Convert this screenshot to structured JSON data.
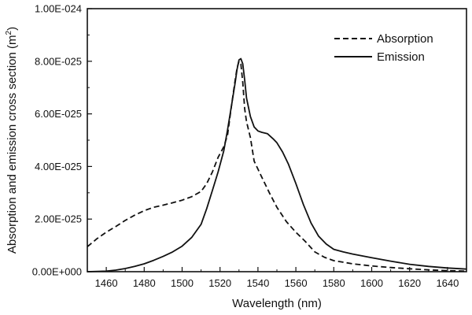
{
  "chart_data": {
    "type": "line",
    "title": "",
    "xlabel": "Wavelength (nm)",
    "ylabel_main": "Absorption and emission cross section (m",
    "ylabel_sup": "2",
    "ylabel_close": ")",
    "xlim": [
      1450,
      1650
    ],
    "ylim": [
      0,
      1e-24
    ],
    "x_ticks": [
      {
        "value": 1460,
        "label": "1460"
      },
      {
        "value": 1480,
        "label": "1480"
      },
      {
        "value": 1500,
        "label": "1500"
      },
      {
        "value": 1520,
        "label": "1520"
      },
      {
        "value": 1540,
        "label": "1540"
      },
      {
        "value": 1560,
        "label": "1560"
      },
      {
        "value": 1580,
        "label": "1580"
      },
      {
        "value": 1600,
        "label": "1600"
      },
      {
        "value": 1620,
        "label": "1620"
      },
      {
        "value": 1640,
        "label": "1640"
      }
    ],
    "y_ticks": [
      {
        "value": 0,
        "label": "0.00E+000"
      },
      {
        "value": 2e-25,
        "label": "2.00E-025"
      },
      {
        "value": 4e-25,
        "label": "4.00E-025"
      },
      {
        "value": 6e-25,
        "label": "6.00E-025"
      },
      {
        "value": 8e-25,
        "label": "8.00E-025"
      },
      {
        "value": 1e-24,
        "label": "1.00E-024"
      }
    ],
    "grid": false,
    "legend_position": "top-right",
    "series": [
      {
        "name": "Absorption",
        "style": "dashed",
        "color": "#111111",
        "x": [
          1450,
          1455,
          1460,
          1465,
          1470,
          1475,
          1480,
          1485,
          1490,
          1495,
          1500,
          1505,
          1510,
          1513,
          1516,
          1519,
          1522,
          1524,
          1526,
          1527,
          1528,
          1529,
          1530,
          1531,
          1532,
          1533,
          1534,
          1536,
          1538,
          1542,
          1546,
          1550,
          1555,
          1560,
          1565,
          1570,
          1575,
          1580,
          1590,
          1600,
          1610,
          1620,
          1630,
          1640,
          1650
        ],
        "y": [
          9.5e-26,
          1.25e-25,
          1.5e-25,
          1.72e-25,
          1.95e-25,
          2.15e-25,
          2.32e-25,
          2.45e-25,
          2.53e-25,
          2.62e-25,
          2.72e-25,
          2.85e-25,
          3.05e-25,
          3.35e-25,
          3.8e-25,
          4.35e-25,
          4.75e-25,
          5.2e-25,
          6.3e-25,
          6.8e-25,
          7.3e-25,
          7.75e-25,
          8e-25,
          7.9e-25,
          7.2e-25,
          6.2e-25,
          5.7e-25,
          5.1e-25,
          4.2e-25,
          3.6e-25,
          3e-25,
          2.45e-25,
          1.9e-25,
          1.5e-25,
          1.15e-25,
          7.5e-26,
          5.5e-26,
          4.2e-26,
          3e-26,
          2.2e-26,
          1.6e-26,
          1.1e-26,
          7e-27,
          4e-27,
          2e-27
        ]
      },
      {
        "name": "Emission",
        "style": "solid",
        "color": "#111111",
        "x": [
          1450,
          1460,
          1465,
          1470,
          1475,
          1480,
          1485,
          1490,
          1495,
          1500,
          1505,
          1510,
          1513,
          1516,
          1519,
          1522,
          1524,
          1526,
          1528,
          1529,
          1530,
          1531,
          1532,
          1533,
          1534,
          1536,
          1538,
          1540,
          1542,
          1545,
          1548,
          1550,
          1553,
          1556,
          1560,
          1564,
          1568,
          1572,
          1576,
          1580,
          1585,
          1590,
          1600,
          1610,
          1620,
          1630,
          1640,
          1650
        ],
        "y": [
          0,
          2e-27,
          6e-27,
          1.2e-26,
          2e-26,
          3e-26,
          4.3e-26,
          5.8e-26,
          7.5e-26,
          9.7e-26,
          1.3e-25,
          1.8e-25,
          2.4e-25,
          3.1e-25,
          3.8e-25,
          4.6e-25,
          5.4e-25,
          6.3e-25,
          7.2e-25,
          7.7e-25,
          8.05e-25,
          8.1e-25,
          7.9e-25,
          7.3e-25,
          6.6e-25,
          5.9e-25,
          5.5e-25,
          5.35e-25,
          5.3e-25,
          5.25e-25,
          5.05e-25,
          4.9e-25,
          4.55e-25,
          4.1e-25,
          3.35e-25,
          2.55e-25,
          1.85e-25,
          1.35e-25,
          1.05e-25,
          8.5e-26,
          7.5e-26,
          6.7e-26,
          5.3e-26,
          4e-26,
          2.8e-26,
          2e-26,
          1.4e-26,
          1e-26
        ]
      }
    ]
  }
}
